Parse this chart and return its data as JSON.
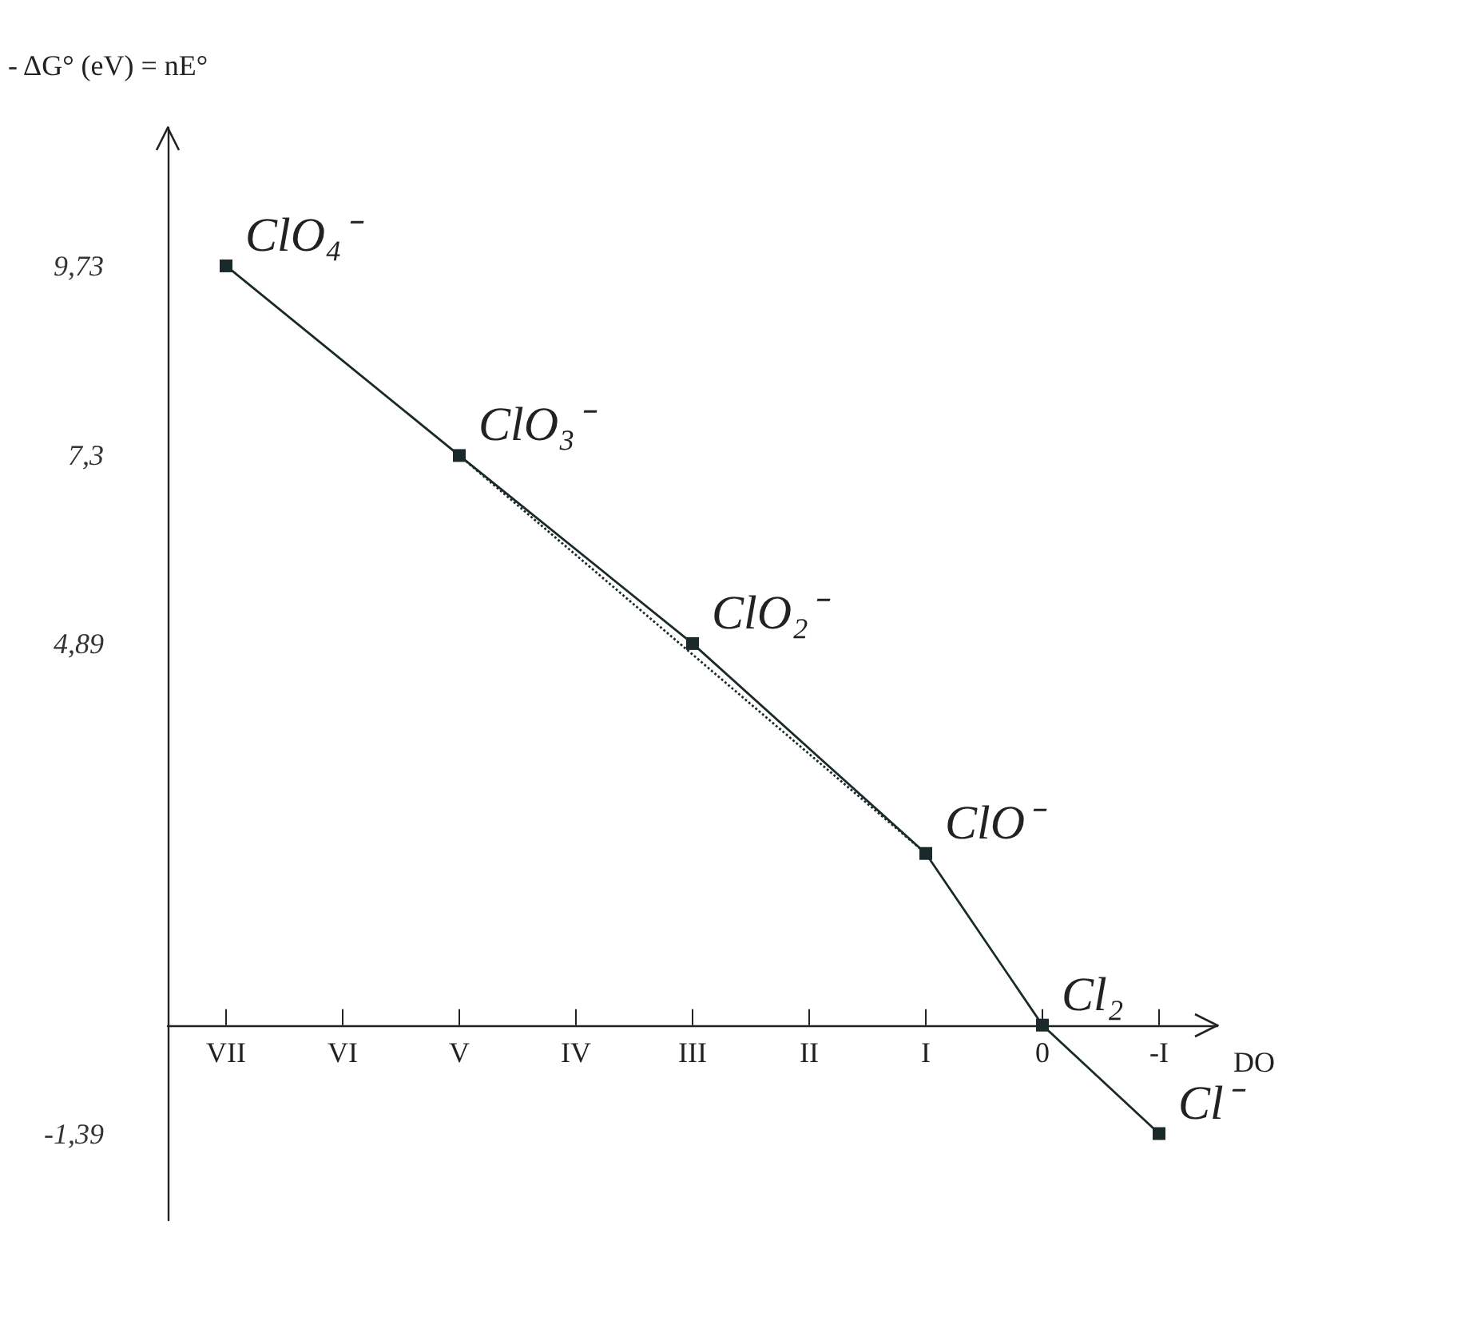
{
  "chart_data": {
    "type": "line",
    "xlabel": "DO",
    "ylabel": "- ΔG° (eV) = nE°",
    "categories": [
      "VII",
      "VI",
      "V",
      "IV",
      "III",
      "II",
      "I",
      "0",
      "-I"
    ],
    "series": [
      {
        "color": "#1a2a2a",
        "values": [
          9.73,
          null,
          7.3,
          null,
          4.89,
          null,
          2.2,
          0,
          -1.39
        ]
      },
      {
        "color": "#1a2a2a",
        "x": [
          "V",
          "I"
        ],
        "values": [
          7.3,
          2.2
        ],
        "line_style": "dotted",
        "marker": "none"
      }
    ],
    "ylim": [
      -2.5,
      11.5
    ],
    "yticks": [
      {
        "value": -1.39,
        "label": "-1,39"
      },
      {
        "value": 4.89,
        "label": "4,89"
      },
      {
        "value": 7.3,
        "label": "7,3"
      },
      {
        "value": 9.73,
        "label": "9,73"
      }
    ],
    "annotations": [
      {
        "text": "ClO₄⁻",
        "x": "VII",
        "y": 9.73
      },
      {
        "text": "ClO₃⁻",
        "x": "V",
        "y": 7.3
      },
      {
        "text": "ClO₂⁻",
        "x": "III",
        "y": 4.89
      },
      {
        "text": "ClO⁻",
        "x": "I",
        "y": 2.2
      },
      {
        "text": "Cl₂",
        "x": "0",
        "y": 0
      },
      {
        "text": "Cl⁻",
        "x": "-I",
        "y": -1.39
      }
    ],
    "marker": "square",
    "line_style": "solid",
    "grid": false
  }
}
